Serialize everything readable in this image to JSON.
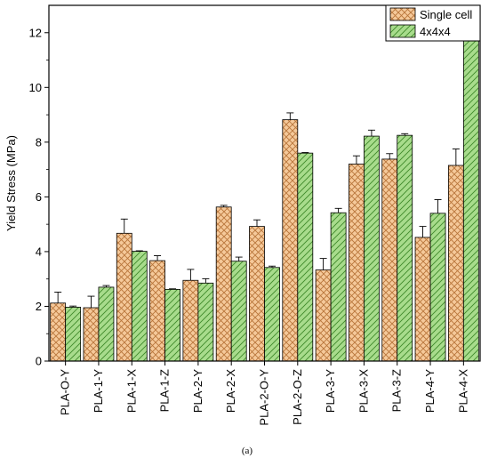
{
  "chart_data": {
    "type": "bar",
    "ylabel": "Yield Stress (MPa)",
    "ylim": [
      0,
      13
    ],
    "yticks": [
      0,
      2,
      4,
      6,
      8,
      10,
      12
    ],
    "categories": [
      "PLA-O-Y",
      "PLA-1-Y",
      "PLA-1-X",
      "PLA-1-Z",
      "PLA-2-Y",
      "PLA-2-X",
      "PLA-2-O-Y",
      "PLA-2-O-Z",
      "PLA-3-Y",
      "PLA-3-X",
      "PLA-3-Z",
      "PLA-4-Y",
      "PLA-4-X"
    ],
    "series": [
      {
        "name": "Single cell",
        "color": "#f5c99a",
        "hatch": "crosshatch",
        "values": [
          2.12,
          1.95,
          4.67,
          3.67,
          2.95,
          5.63,
          4.92,
          8.82,
          3.33,
          7.2,
          7.38,
          4.52,
          7.15
        ],
        "errors": [
          0.4,
          0.42,
          0.52,
          0.18,
          0.4,
          0.06,
          0.24,
          0.25,
          0.42,
          0.3,
          0.2,
          0.4,
          0.6
        ]
      },
      {
        "name": "4x4x4",
        "color": "#a8dc8c",
        "hatch": "diagonal",
        "values": [
          1.97,
          2.7,
          4.01,
          2.62,
          2.85,
          3.65,
          3.42,
          7.6,
          5.42,
          8.22,
          8.25,
          5.4,
          11.87
        ],
        "errors": [
          0.04,
          0.06,
          0.02,
          0.02,
          0.16,
          0.15,
          0.05,
          0.02,
          0.16,
          0.22,
          0.06,
          0.5,
          0.24
        ]
      }
    ],
    "legend_position": "top-right",
    "grid": false,
    "caption": "(a)"
  }
}
